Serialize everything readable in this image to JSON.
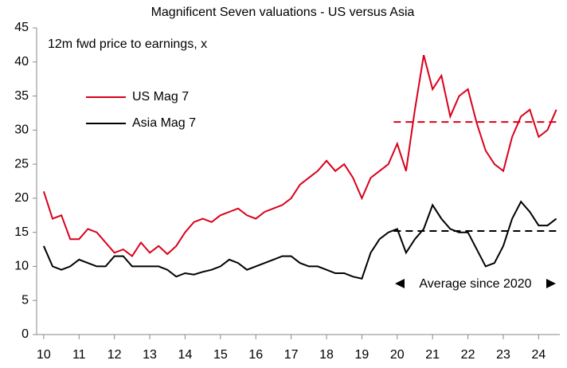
{
  "chart_data": {
    "type": "line",
    "title": "Magnificent Seven valuations - US versus Asia",
    "subtitle": "12m fwd price to earnings, x",
    "annotation": "Average since 2020",
    "x": [
      10,
      10.25,
      10.5,
      10.75,
      11,
      11.25,
      11.5,
      11.75,
      12,
      12.25,
      12.5,
      12.75,
      13,
      13.25,
      13.5,
      13.75,
      14,
      14.25,
      14.5,
      14.75,
      15,
      15.25,
      15.5,
      15.75,
      16,
      16.25,
      16.5,
      16.75,
      17,
      17.25,
      17.5,
      17.75,
      18,
      18.25,
      18.5,
      18.75,
      19,
      19.25,
      19.5,
      19.75,
      20,
      20.25,
      20.5,
      20.75,
      21,
      21.25,
      21.5,
      21.75,
      22,
      22.25,
      22.5,
      22.75,
      23,
      23.25,
      23.5,
      23.75,
      24,
      24.25,
      24.5
    ],
    "series": [
      {
        "name": "US Mag 7",
        "color": "#d9001b",
        "values": [
          21,
          17,
          17.5,
          14,
          14,
          15.5,
          15,
          13.5,
          12,
          12.5,
          11.5,
          13.5,
          12,
          13,
          11.8,
          13,
          15,
          16.5,
          17,
          16.5,
          17.5,
          18,
          18.5,
          17.5,
          17,
          18,
          18.5,
          19,
          20,
          22,
          23,
          24,
          25.5,
          24,
          25,
          23,
          20,
          23,
          24,
          25,
          28,
          24,
          33,
          41,
          36,
          38,
          32,
          35,
          36,
          31,
          27,
          25,
          24,
          29,
          32,
          33,
          29,
          30,
          33
        ]
      },
      {
        "name": "Asia Mag 7",
        "color": "#000000",
        "values": [
          13,
          10,
          9.5,
          10,
          11,
          10.5,
          10,
          10,
          11.5,
          11.5,
          10,
          10,
          10,
          10,
          9.5,
          8.5,
          9,
          8.8,
          9.2,
          9.5,
          10,
          11,
          10.5,
          9.5,
          10,
          10.5,
          11,
          11.5,
          11.5,
          10.5,
          10,
          10,
          9.5,
          9,
          9,
          8.5,
          8.2,
          12,
          14,
          15,
          15.5,
          12,
          14,
          15.5,
          19,
          17,
          15.5,
          15,
          15,
          12.5,
          10,
          10.5,
          13,
          17,
          19.5,
          18,
          16,
          16,
          17
        ]
      }
    ],
    "averages": [
      {
        "value": 31.2,
        "color": "#d9001b",
        "x": [
          19.9,
          24.5
        ]
      },
      {
        "value": 15.2,
        "color": "#000000",
        "x": [
          19.9,
          24.5
        ]
      }
    ],
    "xlim": [
      9.8,
      24.6
    ],
    "xticks": [
      10,
      11,
      12,
      13,
      14,
      15,
      16,
      17,
      18,
      19,
      20,
      21,
      22,
      23,
      24
    ],
    "ylim": [
      0,
      45
    ],
    "yticks": [
      0,
      5,
      10,
      15,
      20,
      25,
      30,
      35,
      40,
      45
    ]
  }
}
